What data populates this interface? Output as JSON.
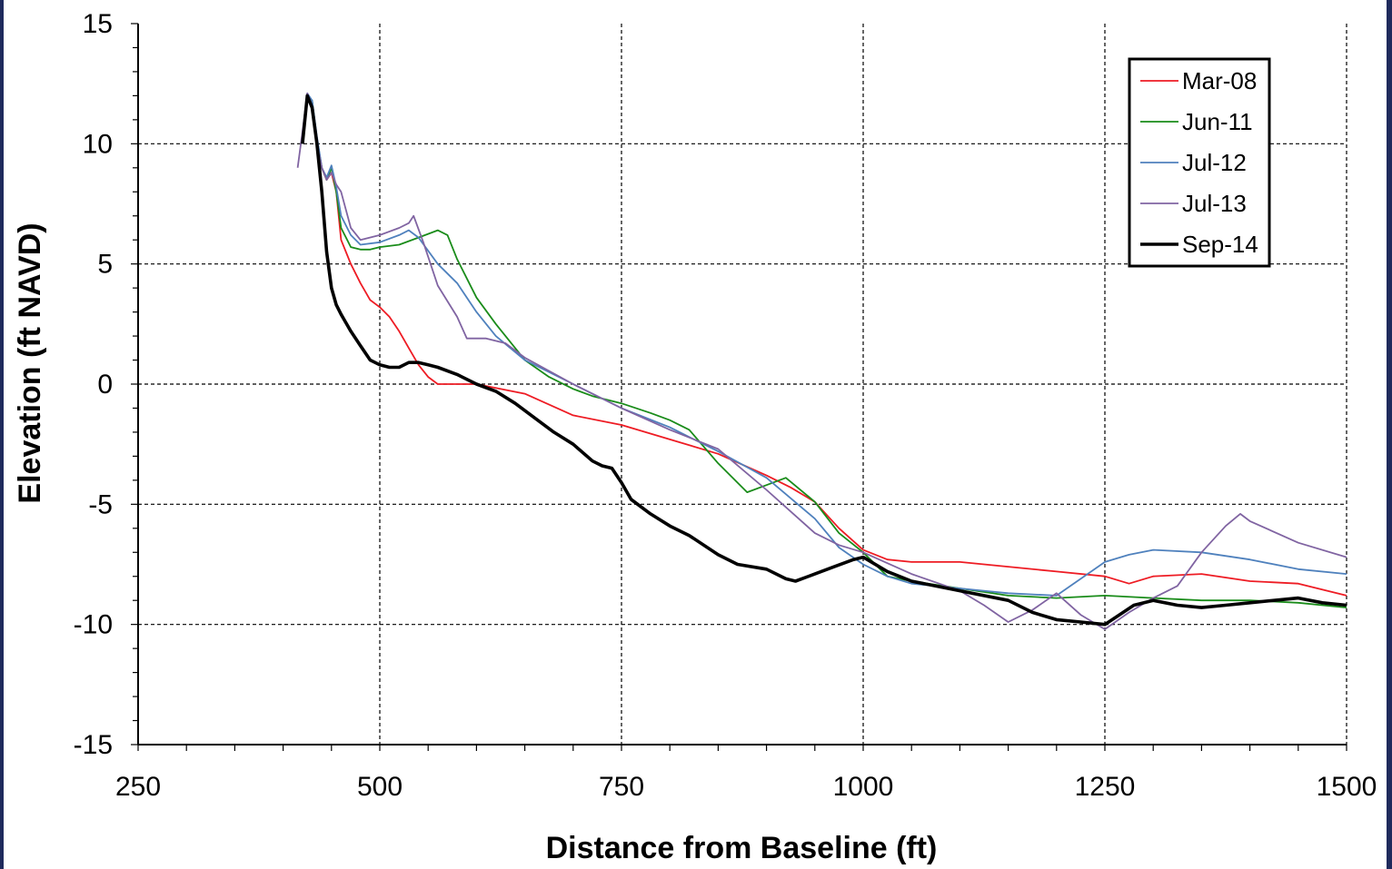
{
  "chart_data": {
    "type": "line",
    "title": "",
    "xlabel": "Distance from Baseline (ft)",
    "ylabel": "Elevation (ft NAVD)",
    "xlim": [
      250,
      1500
    ],
    "ylim": [
      -15,
      15
    ],
    "xticks": [
      250,
      500,
      750,
      1000,
      1250,
      1500
    ],
    "yticks": [
      15,
      10,
      5,
      0,
      -5,
      -10,
      -15
    ],
    "x_minor_step": 50,
    "y_minor_step": 1,
    "grid": "dashed major gridlines",
    "legend_position": "top-right",
    "series": [
      {
        "name": "Mar-08",
        "color": "#ee1c24",
        "x": [
          420,
          425,
          430,
          435,
          440,
          445,
          450,
          455,
          460,
          470,
          480,
          490,
          500,
          510,
          520,
          530,
          540,
          550,
          560,
          570,
          580,
          600,
          650,
          700,
          750,
          800,
          850,
          900,
          925,
          950,
          975,
          1000,
          1025,
          1050,
          1100,
          1150,
          1200,
          1250,
          1275,
          1300,
          1350,
          1400,
          1450,
          1500
        ],
        "y": [
          10,
          12,
          11.5,
          10,
          9,
          8.5,
          8.8,
          8,
          6,
          5,
          4.2,
          3.5,
          3.2,
          2.8,
          2.2,
          1.5,
          0.8,
          0.3,
          0,
          0,
          0,
          0,
          -0.4,
          -1.3,
          -1.7,
          -2.3,
          -2.9,
          -3.8,
          -4.3,
          -4.9,
          -6,
          -6.9,
          -7.3,
          -7.4,
          -7.4,
          -7.6,
          -7.8,
          -8,
          -8.3,
          -8,
          -7.9,
          -8.2,
          -8.3,
          -8.8
        ]
      },
      {
        "name": "Jun-11",
        "color": "#1a8c1a",
        "x": [
          420,
          425,
          430,
          435,
          440,
          445,
          450,
          455,
          460,
          470,
          480,
          490,
          500,
          520,
          540,
          560,
          570,
          580,
          600,
          620,
          650,
          675,
          700,
          720,
          750,
          780,
          800,
          820,
          850,
          880,
          900,
          920,
          950,
          975,
          1000,
          1025,
          1050,
          1100,
          1150,
          1200,
          1250,
          1300,
          1350,
          1400,
          1450,
          1500
        ],
        "y": [
          10,
          12,
          11.8,
          10.2,
          9,
          8.5,
          9,
          8,
          6.5,
          5.7,
          5.6,
          5.6,
          5.7,
          5.8,
          6.1,
          6.4,
          6.2,
          5.2,
          3.6,
          2.5,
          1,
          0.3,
          -0.2,
          -0.5,
          -0.8,
          -1.2,
          -1.5,
          -1.9,
          -3.3,
          -4.5,
          -4.2,
          -3.9,
          -4.9,
          -6.2,
          -7,
          -8,
          -8.2,
          -8.5,
          -8.8,
          -8.9,
          -8.8,
          -8.9,
          -9,
          -9,
          -9.1,
          -9.3
        ]
      },
      {
        "name": "Jul-12",
        "color": "#4f81bd",
        "x": [
          420,
          425,
          430,
          435,
          440,
          445,
          450,
          455,
          460,
          470,
          480,
          500,
          520,
          530,
          540,
          560,
          580,
          600,
          620,
          650,
          700,
          750,
          800,
          850,
          900,
          950,
          975,
          1000,
          1025,
          1050,
          1100,
          1150,
          1200,
          1225,
          1250,
          1275,
          1300,
          1350,
          1400,
          1450,
          1500
        ],
        "y": [
          10,
          12.1,
          11.8,
          10.3,
          9,
          8.6,
          9.1,
          8.2,
          7,
          6.2,
          5.8,
          5.9,
          6.2,
          6.4,
          6.1,
          5,
          4.2,
          3,
          2,
          1,
          0,
          -1,
          -1.8,
          -2.8,
          -3.9,
          -5.6,
          -6.8,
          -7.5,
          -8,
          -8.3,
          -8.5,
          -8.7,
          -8.8,
          -8.1,
          -7.4,
          -7.1,
          -6.9,
          -7,
          -7.3,
          -7.7,
          -7.9
        ]
      },
      {
        "name": "Jul-13",
        "color": "#8064a2",
        "x": [
          415,
          420,
          425,
          430,
          435,
          440,
          445,
          450,
          455,
          460,
          470,
          480,
          500,
          520,
          530,
          535,
          545,
          560,
          580,
          590,
          610,
          630,
          650,
          700,
          750,
          800,
          850,
          900,
          950,
          975,
          1000,
          1050,
          1100,
          1125,
          1150,
          1175,
          1200,
          1225,
          1250,
          1275,
          1300,
          1325,
          1350,
          1375,
          1390,
          1400,
          1450,
          1500
        ],
        "y": [
          9,
          10.5,
          12.1,
          11.6,
          10,
          9,
          8.5,
          8.8,
          8.3,
          8,
          6.5,
          6,
          6.2,
          6.5,
          6.7,
          7,
          5.9,
          4.1,
          2.8,
          1.9,
          1.9,
          1.7,
          1.1,
          0,
          -1,
          -1.9,
          -2.7,
          -4.4,
          -6.2,
          -6.7,
          -7,
          -7.9,
          -8.6,
          -9.2,
          -9.9,
          -9.4,
          -8.7,
          -9.6,
          -10.2,
          -9.5,
          -8.9,
          -8.4,
          -7,
          -5.9,
          -5.4,
          -5.7,
          -6.6,
          -7.2
        ]
      },
      {
        "name": "Sep-14",
        "color": "#000000",
        "x": [
          420,
          425,
          430,
          435,
          440,
          445,
          450,
          455,
          460,
          470,
          480,
          490,
          500,
          510,
          520,
          530,
          540,
          550,
          560,
          580,
          600,
          620,
          640,
          660,
          680,
          700,
          720,
          730,
          740,
          750,
          760,
          780,
          800,
          820,
          850,
          870,
          900,
          920,
          930,
          950,
          970,
          990,
          1000,
          1025,
          1050,
          1100,
          1150,
          1175,
          1200,
          1225,
          1250,
          1265,
          1280,
          1300,
          1325,
          1350,
          1375,
          1400,
          1425,
          1450,
          1475,
          1500
        ],
        "y": [
          10,
          12,
          11.5,
          10,
          8,
          5.5,
          4,
          3.3,
          2.9,
          2.2,
          1.6,
          1,
          0.8,
          0.7,
          0.7,
          0.9,
          0.9,
          0.8,
          0.7,
          0.4,
          0,
          -0.3,
          -0.8,
          -1.4,
          -2,
          -2.5,
          -3.2,
          -3.4,
          -3.5,
          -4.1,
          -4.8,
          -5.4,
          -5.9,
          -6.3,
          -7.1,
          -7.5,
          -7.7,
          -8.1,
          -8.2,
          -7.9,
          -7.6,
          -7.3,
          -7.2,
          -7.8,
          -8.2,
          -8.6,
          -9,
          -9.5,
          -9.8,
          -9.9,
          -10,
          -9.6,
          -9.2,
          -9,
          -9.2,
          -9.3,
          -9.2,
          -9.1,
          -9,
          -8.9,
          -9.1,
          -9.2
        ]
      }
    ]
  }
}
